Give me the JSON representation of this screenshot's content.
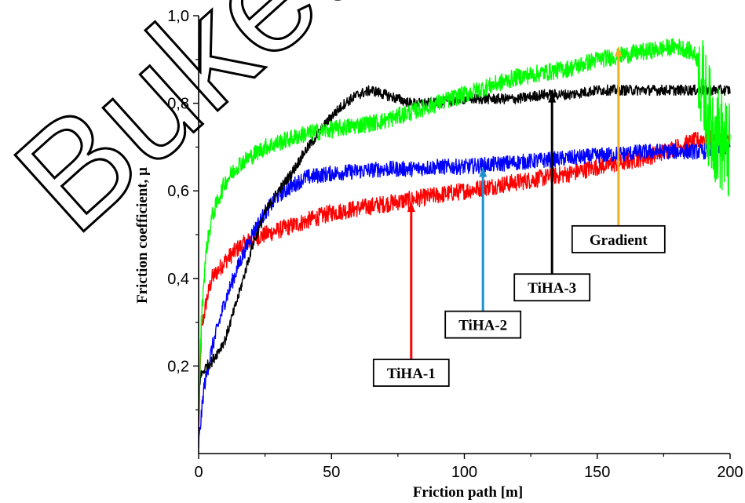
{
  "watermark_text": "Buketov",
  "chart_data": {
    "type": "line",
    "xlabel": "Friction path [m]",
    "ylabel": "Friction coefficient, μ",
    "xlim": [
      0,
      200
    ],
    "ylim": [
      0.0,
      1.0
    ],
    "x_ticks": [
      0,
      50,
      100,
      150,
      200
    ],
    "x_tick_labels": [
      "0",
      "50",
      "100",
      "150",
      "200"
    ],
    "y_ticks": [
      0.2,
      0.4,
      0.6,
      0.8,
      1.0
    ],
    "y_tick_labels": [
      "0,2",
      "0,4",
      "0,6",
      "0,8",
      "1,0"
    ],
    "grid": false,
    "series": [
      {
        "name": "TiHA-1",
        "color": "#ff0000",
        "x": [
          0,
          1,
          3,
          5,
          10,
          15,
          20,
          30,
          40,
          50,
          60,
          70,
          80,
          90,
          100,
          110,
          120,
          130,
          140,
          150,
          160,
          170,
          180,
          190,
          200
        ],
        "y": [
          0.05,
          0.28,
          0.35,
          0.4,
          0.44,
          0.47,
          0.49,
          0.51,
          0.53,
          0.55,
          0.56,
          0.57,
          0.58,
          0.59,
          0.6,
          0.61,
          0.62,
          0.63,
          0.64,
          0.655,
          0.665,
          0.68,
          0.7,
          0.72,
          0.72
        ],
        "noise": 0.02
      },
      {
        "name": "TiHA-2",
        "color": "#0000ff",
        "x": [
          0,
          2,
          5,
          10,
          15,
          20,
          25,
          30,
          35,
          40,
          45,
          50,
          60,
          70,
          80,
          90,
          100,
          110,
          120,
          130,
          140,
          150,
          160,
          170,
          180,
          190,
          200
        ],
        "y": [
          0.02,
          0.15,
          0.24,
          0.35,
          0.43,
          0.5,
          0.55,
          0.59,
          0.61,
          0.63,
          0.635,
          0.64,
          0.645,
          0.65,
          0.65,
          0.655,
          0.655,
          0.66,
          0.665,
          0.67,
          0.675,
          0.68,
          0.685,
          0.69,
          0.69,
          0.69,
          0.7
        ],
        "noise": 0.018
      },
      {
        "name": "TiHA-3",
        "color": "#000000",
        "x": [
          0,
          1,
          3,
          5,
          10,
          15,
          20,
          25,
          30,
          35,
          40,
          45,
          50,
          55,
          60,
          65,
          70,
          80,
          90,
          100,
          110,
          120,
          130,
          140,
          150,
          160,
          170,
          180,
          190,
          195,
          200
        ],
        "y": [
          0.15,
          0.18,
          0.2,
          0.21,
          0.26,
          0.36,
          0.47,
          0.55,
          0.6,
          0.64,
          0.69,
          0.73,
          0.77,
          0.8,
          0.82,
          0.83,
          0.82,
          0.8,
          0.8,
          0.81,
          0.81,
          0.81,
          0.82,
          0.82,
          0.83,
          0.83,
          0.83,
          0.83,
          0.83,
          0.83,
          0.83
        ],
        "noise": 0.012
      },
      {
        "name": "Gradient",
        "color": "#00ff00",
        "x": [
          0,
          1,
          2,
          3,
          5,
          8,
          10,
          15,
          20,
          25,
          30,
          40,
          50,
          60,
          70,
          80,
          90,
          100,
          110,
          120,
          130,
          140,
          150,
          160,
          170,
          180,
          185,
          188,
          190,
          193,
          196,
          200
        ],
        "y": [
          0.1,
          0.3,
          0.4,
          0.47,
          0.54,
          0.59,
          0.62,
          0.66,
          0.68,
          0.7,
          0.71,
          0.73,
          0.74,
          0.75,
          0.76,
          0.78,
          0.8,
          0.82,
          0.84,
          0.86,
          0.87,
          0.88,
          0.9,
          0.91,
          0.92,
          0.93,
          0.92,
          0.9,
          0.82,
          0.75,
          0.72,
          0.68
        ],
        "noise": 0.02
      }
    ],
    "annotations": [
      {
        "label": "TiHA-1",
        "arrow_color": "#ff0000",
        "arrow_x": 80,
        "arrow_y": 0.575,
        "box_x": 80,
        "box_y": 0.215
      },
      {
        "label": "TiHA-2",
        "arrow_color": "#1e90d0",
        "arrow_x": 107,
        "arrow_y": 0.655,
        "box_x": 107,
        "box_y": 0.325
      },
      {
        "label": "TiHA-3",
        "arrow_color": "#000000",
        "arrow_x": 133,
        "arrow_y": 0.825,
        "box_x": 133,
        "box_y": 0.41
      },
      {
        "label": "Gradient",
        "arrow_color": "#f0b020",
        "arrow_x": 158,
        "arrow_y": 0.93,
        "box_x": 158,
        "box_y": 0.52
      }
    ]
  }
}
